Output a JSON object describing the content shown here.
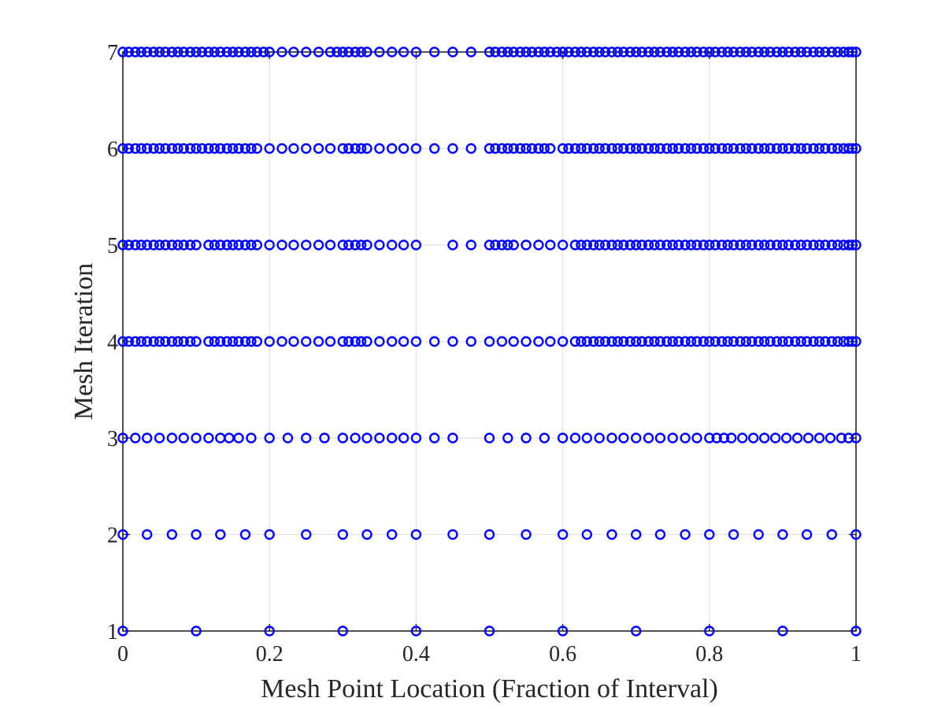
{
  "chart_data": {
    "type": "scatter",
    "title": "",
    "xlabel": "Mesh Point Location (Fraction of Interval)",
    "ylabel": "Mesh Iteration",
    "xlim": [
      0,
      1
    ],
    "ylim": [
      1,
      7
    ],
    "xticks": [
      0,
      0.2,
      0.4,
      0.6,
      0.8,
      1
    ],
    "xtick_labels": [
      "0",
      "0.2",
      "0.4",
      "0.6",
      "0.8",
      "1"
    ],
    "yticks": [
      1,
      2,
      3,
      4,
      5,
      6,
      7
    ],
    "ytick_labels": [
      "1",
      "2",
      "3",
      "4",
      "5",
      "6",
      "7"
    ],
    "grid": true,
    "marker": "circle-open",
    "color": "#0000ff",
    "series": [
      {
        "y": 1,
        "x": [
          0,
          0.1,
          0.2,
          0.3,
          0.4,
          0.5,
          0.6,
          0.7,
          0.8,
          0.9,
          1.0
        ]
      },
      {
        "y": 2,
        "x": [
          0,
          0.033,
          0.067,
          0.1,
          0.133,
          0.167,
          0.2,
          0.25,
          0.3,
          0.333,
          0.367,
          0.4,
          0.45,
          0.5,
          0.55,
          0.6,
          0.633,
          0.667,
          0.7,
          0.733,
          0.767,
          0.8,
          0.833,
          0.867,
          0.9,
          0.933,
          0.967,
          1.0
        ]
      },
      {
        "y": 3,
        "x": [
          0,
          0.017,
          0.033,
          0.05,
          0.067,
          0.083,
          0.1,
          0.117,
          0.133,
          0.145,
          0.158,
          0.175,
          0.2,
          0.225,
          0.25,
          0.275,
          0.3,
          0.317,
          0.333,
          0.35,
          0.367,
          0.383,
          0.4,
          0.425,
          0.45,
          0.5,
          0.525,
          0.55,
          0.575,
          0.6,
          0.617,
          0.633,
          0.65,
          0.667,
          0.683,
          0.7,
          0.717,
          0.733,
          0.75,
          0.767,
          0.783,
          0.8,
          0.81,
          0.82,
          0.83,
          0.845,
          0.86,
          0.875,
          0.89,
          0.905,
          0.92,
          0.935,
          0.95,
          0.965,
          0.98,
          0.99,
          1.0
        ]
      },
      {
        "y": 4,
        "x": [
          0,
          0.008,
          0.017,
          0.025,
          0.033,
          0.042,
          0.05,
          0.058,
          0.067,
          0.075,
          0.083,
          0.092,
          0.1,
          0.117,
          0.125,
          0.133,
          0.142,
          0.15,
          0.158,
          0.167,
          0.175,
          0.183,
          0.2,
          0.217,
          0.233,
          0.25,
          0.267,
          0.283,
          0.3,
          0.308,
          0.317,
          0.325,
          0.333,
          0.35,
          0.367,
          0.383,
          0.4,
          0.425,
          0.45,
          0.475,
          0.5,
          0.517,
          0.533,
          0.55,
          0.567,
          0.583,
          0.6,
          0.617,
          0.625,
          0.633,
          0.642,
          0.65,
          0.658,
          0.667,
          0.675,
          0.683,
          0.692,
          0.7,
          0.708,
          0.717,
          0.725,
          0.733,
          0.742,
          0.75,
          0.758,
          0.767,
          0.775,
          0.783,
          0.792,
          0.8,
          0.808,
          0.817,
          0.825,
          0.833,
          0.842,
          0.85,
          0.858,
          0.867,
          0.875,
          0.883,
          0.892,
          0.9,
          0.908,
          0.917,
          0.925,
          0.933,
          0.942,
          0.95,
          0.958,
          0.967,
          0.975,
          0.983,
          0.99,
          0.995,
          1.0
        ]
      },
      {
        "y": 5,
        "x": [
          0,
          0.008,
          0.017,
          0.025,
          0.033,
          0.042,
          0.05,
          0.058,
          0.067,
          0.075,
          0.083,
          0.092,
          0.1,
          0.117,
          0.125,
          0.133,
          0.142,
          0.15,
          0.158,
          0.167,
          0.175,
          0.183,
          0.2,
          0.217,
          0.233,
          0.25,
          0.267,
          0.283,
          0.3,
          0.308,
          0.317,
          0.325,
          0.333,
          0.35,
          0.367,
          0.383,
          0.4,
          0.45,
          0.475,
          0.5,
          0.508,
          0.517,
          0.525,
          0.533,
          0.55,
          0.567,
          0.583,
          0.6,
          0.617,
          0.625,
          0.633,
          0.642,
          0.65,
          0.658,
          0.667,
          0.675,
          0.683,
          0.692,
          0.7,
          0.708,
          0.717,
          0.725,
          0.733,
          0.742,
          0.75,
          0.758,
          0.767,
          0.775,
          0.783,
          0.792,
          0.8,
          0.808,
          0.817,
          0.825,
          0.833,
          0.842,
          0.85,
          0.858,
          0.867,
          0.875,
          0.883,
          0.892,
          0.9,
          0.908,
          0.917,
          0.925,
          0.933,
          0.942,
          0.95,
          0.958,
          0.967,
          0.975,
          0.983,
          0.99,
          0.995,
          1.0
        ]
      },
      {
        "y": 6,
        "x": [
          0,
          0.008,
          0.017,
          0.025,
          0.033,
          0.042,
          0.05,
          0.058,
          0.067,
          0.075,
          0.083,
          0.092,
          0.1,
          0.108,
          0.117,
          0.125,
          0.133,
          0.142,
          0.15,
          0.158,
          0.167,
          0.175,
          0.183,
          0.2,
          0.217,
          0.233,
          0.25,
          0.267,
          0.283,
          0.3,
          0.308,
          0.317,
          0.325,
          0.333,
          0.35,
          0.367,
          0.383,
          0.4,
          0.425,
          0.45,
          0.475,
          0.5,
          0.508,
          0.517,
          0.525,
          0.533,
          0.542,
          0.55,
          0.558,
          0.567,
          0.575,
          0.583,
          0.6,
          0.608,
          0.617,
          0.625,
          0.633,
          0.642,
          0.65,
          0.658,
          0.667,
          0.675,
          0.683,
          0.692,
          0.7,
          0.708,
          0.717,
          0.725,
          0.733,
          0.742,
          0.75,
          0.758,
          0.767,
          0.775,
          0.783,
          0.792,
          0.8,
          0.808,
          0.817,
          0.825,
          0.833,
          0.842,
          0.85,
          0.858,
          0.867,
          0.875,
          0.883,
          0.892,
          0.9,
          0.908,
          0.917,
          0.925,
          0.933,
          0.942,
          0.95,
          0.958,
          0.967,
          0.975,
          0.983,
          0.99,
          0.995,
          1.0
        ]
      },
      {
        "y": 7,
        "x": [
          0,
          0.008,
          0.017,
          0.025,
          0.033,
          0.042,
          0.05,
          0.058,
          0.067,
          0.075,
          0.083,
          0.092,
          0.1,
          0.108,
          0.117,
          0.125,
          0.133,
          0.142,
          0.15,
          0.158,
          0.167,
          0.175,
          0.183,
          0.192,
          0.2,
          0.217,
          0.233,
          0.25,
          0.267,
          0.283,
          0.292,
          0.3,
          0.308,
          0.317,
          0.325,
          0.333,
          0.35,
          0.367,
          0.383,
          0.4,
          0.425,
          0.45,
          0.475,
          0.5,
          0.508,
          0.517,
          0.525,
          0.533,
          0.542,
          0.55,
          0.558,
          0.567,
          0.575,
          0.583,
          0.592,
          0.6,
          0.608,
          0.617,
          0.625,
          0.633,
          0.642,
          0.65,
          0.658,
          0.667,
          0.675,
          0.683,
          0.692,
          0.7,
          0.708,
          0.717,
          0.725,
          0.733,
          0.742,
          0.75,
          0.758,
          0.767,
          0.775,
          0.783,
          0.792,
          0.8,
          0.808,
          0.817,
          0.825,
          0.833,
          0.842,
          0.85,
          0.858,
          0.867,
          0.875,
          0.883,
          0.892,
          0.9,
          0.908,
          0.917,
          0.925,
          0.933,
          0.942,
          0.95,
          0.958,
          0.967,
          0.975,
          0.983,
          0.99,
          0.995,
          1.0
        ]
      }
    ]
  }
}
